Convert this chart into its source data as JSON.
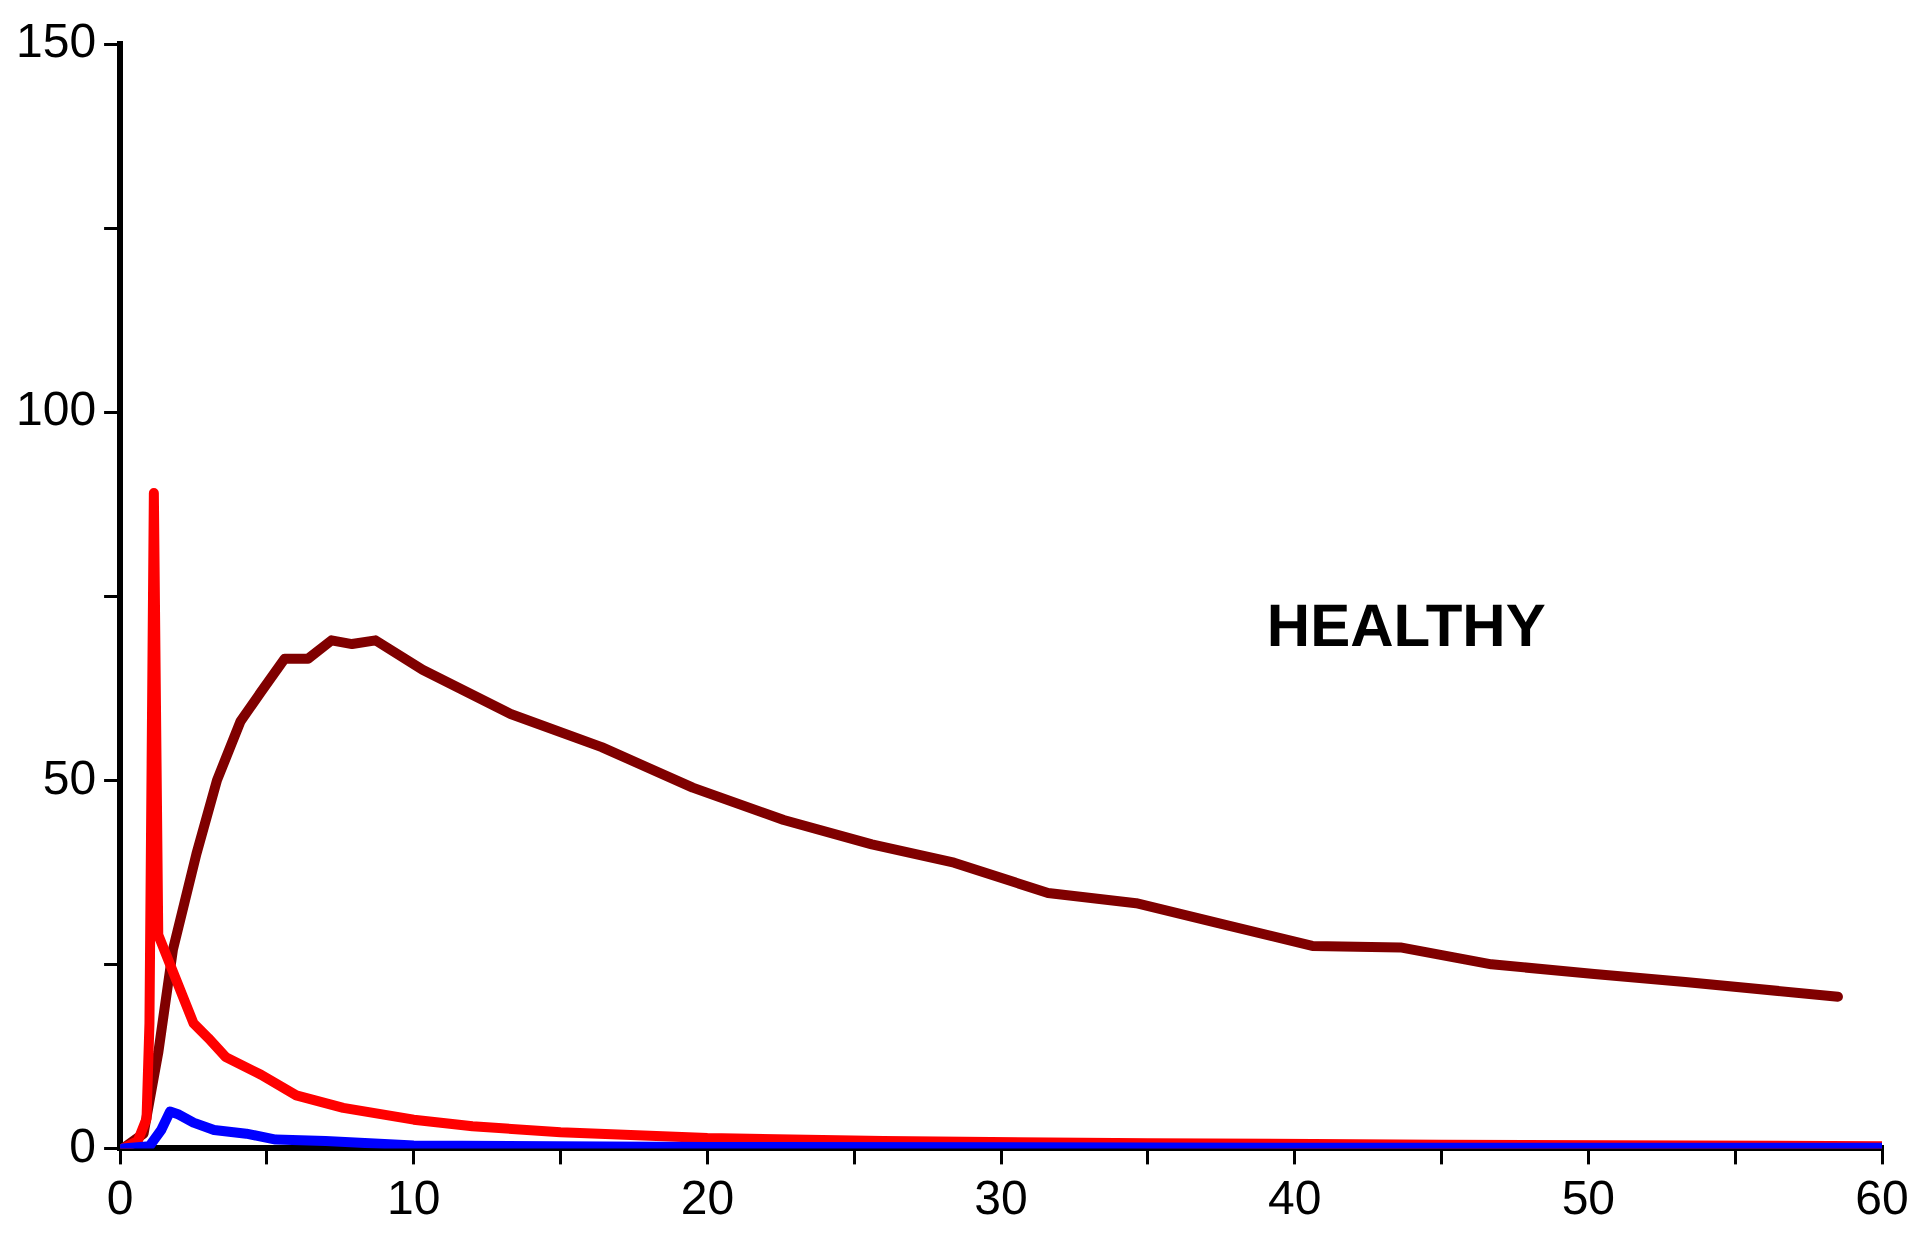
{
  "chart_data": {
    "type": "line",
    "annotations": [
      "HEALTHY"
    ],
    "xlim": [
      0,
      60
    ],
    "xticks": [
      0,
      {
        "value": 5,
        "label": null
      },
      10,
      {
        "value": 15,
        "label": null
      },
      20,
      {
        "value": 25,
        "label": null
      },
      30,
      {
        "value": 35,
        "label": null
      },
      40,
      {
        "value": 45,
        "label": null
      },
      50,
      {
        "value": 55,
        "label": null
      },
      60
    ],
    "ylim": [
      0,
      150
    ],
    "yticks": [
      0,
      {
        "value": 25,
        "label": null
      },
      50,
      {
        "value": 75,
        "label": null
      },
      100,
      {
        "value": 125,
        "label": null
      },
      150
    ],
    "grid": false,
    "legend": false,
    "marker": "none",
    "line_style": "solid",
    "series": [
      {
        "color": "#800000",
        "x": [
          0.1,
          0.8,
          1.3,
          1.8,
          2.6,
          3.3,
          4.1,
          4.8,
          5.6,
          6.4,
          7.2,
          7.9,
          8.7,
          10.3,
          13.3,
          16.4,
          19.5,
          22.6,
          25.6,
          28.4,
          31.6,
          34.6,
          37.5,
          40.6,
          43.6,
          46.7,
          50.2,
          53.3,
          58.5
        ],
        "values": [
          0,
          2,
          13,
          27,
          40,
          50,
          58,
          62,
          66.5,
          66.5,
          69,
          68.5,
          69,
          65,
          59,
          54.5,
          49,
          44.6,
          41.3,
          38.8,
          34.7,
          33.3,
          30.5,
          27.5,
          27.3,
          25,
          23.7,
          22.6,
          20.6
        ]
      },
      {
        "color": "#ff0000",
        "x": [
          0.1,
          0.6,
          0.9,
          1.0,
          1.15,
          1.3,
          2.5,
          3.0,
          3.6,
          4.8,
          6,
          7.6,
          10,
          12,
          15,
          20,
          26,
          35,
          45,
          60
        ],
        "values": [
          0,
          1,
          4,
          17,
          89,
          29,
          17,
          15,
          12.4,
          10,
          7.2,
          5.5,
          3.9,
          3,
          2.2,
          1.4,
          1,
          0.7,
          0.5,
          0.3
        ]
      },
      {
        "color": "#0000ff",
        "x": [
          0.1,
          1.0,
          1.4,
          1.7,
          2.0,
          2.5,
          3.2,
          4.3,
          5.3,
          7,
          10,
          20,
          40,
          60
        ],
        "values": [
          0,
          0.3,
          2.5,
          5,
          4.6,
          3.5,
          2.5,
          2,
          1.2,
          1,
          0.4,
          0.2,
          0.1,
          0.1
        ]
      }
    ]
  }
}
